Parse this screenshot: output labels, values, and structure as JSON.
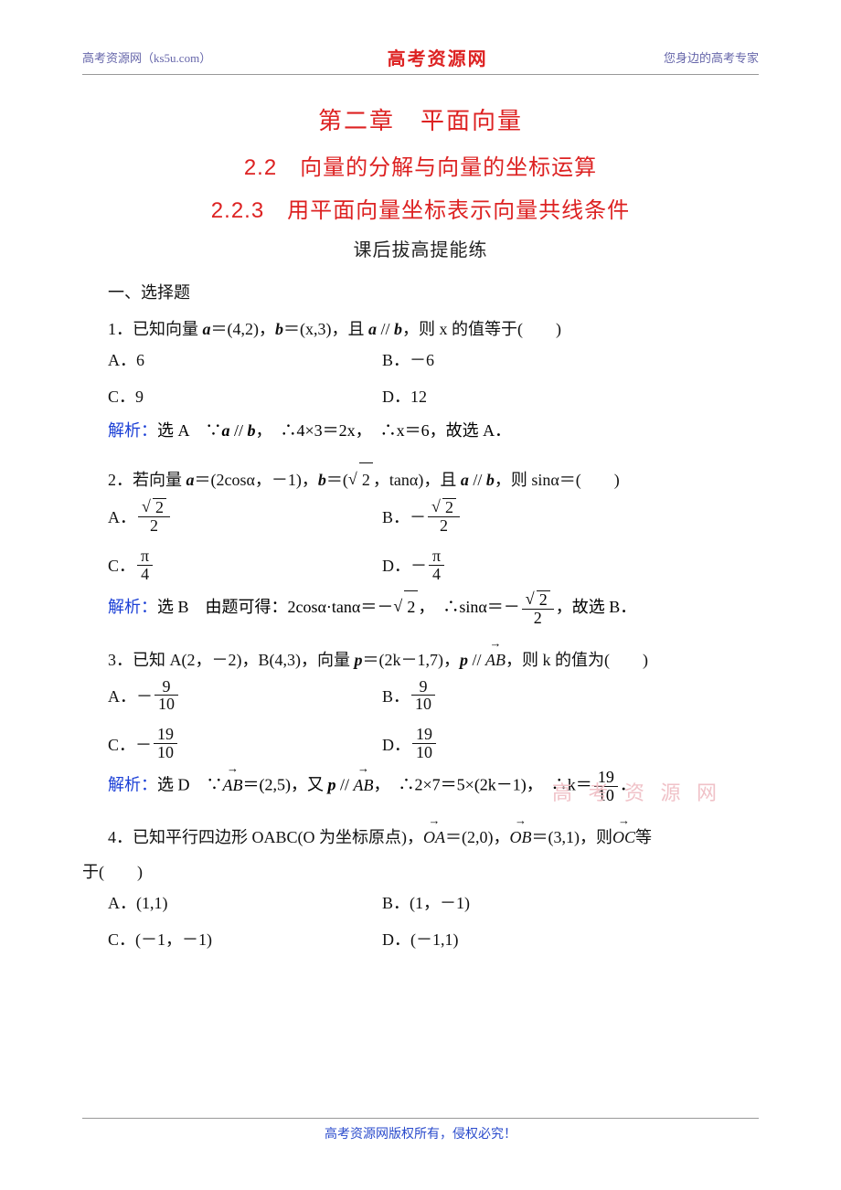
{
  "header": {
    "left": "高考资源网（ks5u.com）",
    "center": "高考资源网",
    "right": "您身边的高考专家"
  },
  "titles": {
    "chapter": "第二章　平面向量",
    "section": "2.2　向量的分解与向量的坐标运算",
    "subsection": "2.2.3　用平面向量坐标表示向量共线条件",
    "subtitle": "课后拔高提能练"
  },
  "sectionHead": "一、选择题",
  "q1": {
    "stem_pre": "1．已知向量 ",
    "a_eq": "＝(4,2)，",
    "b_eq": "＝(x,3)，且 ",
    "parallel": " // ",
    "stem_post": "，则 x 的值等于(　　)",
    "A": "A．6",
    "B": "B．－6",
    "C": "C．9",
    "D": "D．12",
    "sol_label": "解析：",
    "sol_ans": "选 A　∵",
    "sol_mid": " // ",
    "sol_body": "，　∴4×3＝2x，　∴x＝6，故选 A．"
  },
  "q2": {
    "stem_pre": "2．若向量 ",
    "a_eq": "＝(2cosα，－1)，",
    "b_eq_pre": "＝(",
    "b_eq_post": "，tanα)，且 ",
    "parallel": " // ",
    "stem_post": "，则 sinα＝(　　)",
    "A_label": "A．",
    "B_label": "B．",
    "C_label": "C．",
    "D_label": "D．",
    "pi": "π",
    "four": "4",
    "two": "2",
    "sqrt2": "2",
    "neg": "－",
    "sol_label": "解析：",
    "sol_ans": "选 B　由题可得：2cosα·tanα＝－",
    "sol_mid": "，　∴sinα＝－",
    "sol_post": "，故选 B．"
  },
  "q3": {
    "stem_pre": "3．已知 A(2，－2)，B(4,3)，向量 ",
    "p_eq": "＝(2k－1,7)，",
    "parallel_pre": " // ",
    "stem_post": "，则 k 的值为(　　)",
    "A_label": "A．",
    "B_label": "B．",
    "C_label": "C．",
    "D_label": "D．",
    "nine": "9",
    "ten": "10",
    "nineteen": "19",
    "neg": "－",
    "sol_label": "解析：",
    "sol_pre": "选 D　∵",
    "ab_val": "＝(2,5)，又 ",
    "sol_mid": " // ",
    "sol_body": "，　∴2×7＝5×(2k－1)，　∴k＝",
    "sol_dot": "．"
  },
  "q4": {
    "stem_pre": "4．已知平行四边形 OABC(O 为坐标原点)，",
    "oa": "＝(2,0)，",
    "ob": "＝(3,1)，则",
    "oc_post": "等",
    "stem_end": "于(　　)",
    "A": "A．(1,1)",
    "B": "B．(1，－1)",
    "C": "C．(－1，－1)",
    "D": "D．(－1,1)"
  },
  "watermark": "高 考 资 源 网",
  "footer": "高考资源网版权所有，侵权必究！"
}
